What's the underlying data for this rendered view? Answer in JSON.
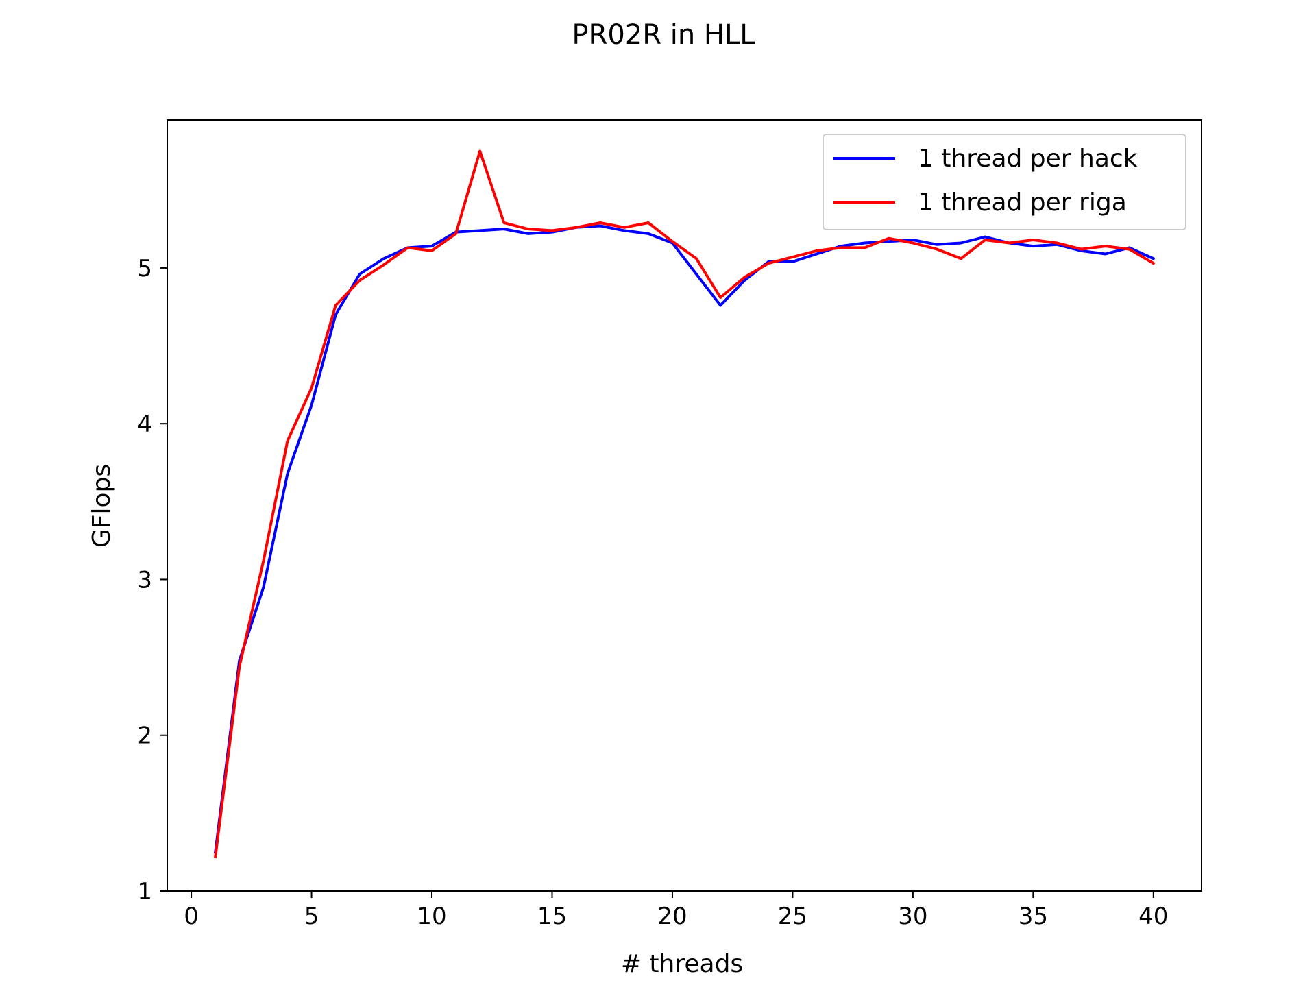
{
  "chart_data": {
    "type": "line",
    "title": "PR02R in HLL",
    "xlabel": "# threads",
    "ylabel": "GFlops",
    "xlim": [
      -1,
      42
    ],
    "ylim": [
      1,
      5.95
    ],
    "xticks": [
      0,
      5,
      10,
      15,
      20,
      25,
      30,
      35,
      40
    ],
    "yticks": [
      1,
      2,
      3,
      4,
      5
    ],
    "xtick_labels": [
      "0",
      "5",
      "10",
      "15",
      "20",
      "25",
      "30",
      "35",
      "40"
    ],
    "ytick_labels": [
      "1",
      "2",
      "3",
      "4",
      "5"
    ],
    "grid": false,
    "legend_position": "upper right",
    "x": [
      1,
      2,
      3,
      4,
      5,
      6,
      7,
      8,
      9,
      10,
      11,
      12,
      13,
      14,
      15,
      16,
      17,
      18,
      19,
      20,
      21,
      22,
      23,
      24,
      25,
      26,
      27,
      28,
      29,
      30,
      31,
      32,
      33,
      34,
      35,
      36,
      37,
      38,
      39,
      40
    ],
    "series": [
      {
        "name": "1 thread per hack",
        "color": "#0000ff",
        "values": [
          1.25,
          2.48,
          2.95,
          3.68,
          4.12,
          4.7,
          4.96,
          5.06,
          5.13,
          5.14,
          5.23,
          5.24,
          5.25,
          5.22,
          5.23,
          5.26,
          5.27,
          5.24,
          5.22,
          5.16,
          4.96,
          4.76,
          4.92,
          5.04,
          5.04,
          5.09,
          5.14,
          5.16,
          5.17,
          5.18,
          5.15,
          5.16,
          5.2,
          5.16,
          5.14,
          5.15,
          5.11,
          5.09,
          5.13,
          5.06
        ]
      },
      {
        "name": "1 thread per riga",
        "color": "#ff0000",
        "values": [
          1.22,
          2.44,
          3.12,
          3.89,
          4.23,
          4.76,
          4.92,
          5.02,
          5.13,
          5.11,
          5.22,
          5.75,
          5.29,
          5.25,
          5.24,
          5.26,
          5.29,
          5.26,
          5.29,
          5.17,
          5.06,
          4.81,
          4.94,
          5.03,
          5.07,
          5.11,
          5.13,
          5.13,
          5.19,
          5.16,
          5.12,
          5.06,
          5.18,
          5.16,
          5.18,
          5.16,
          5.12,
          5.14,
          5.12,
          5.03
        ]
      }
    ]
  }
}
